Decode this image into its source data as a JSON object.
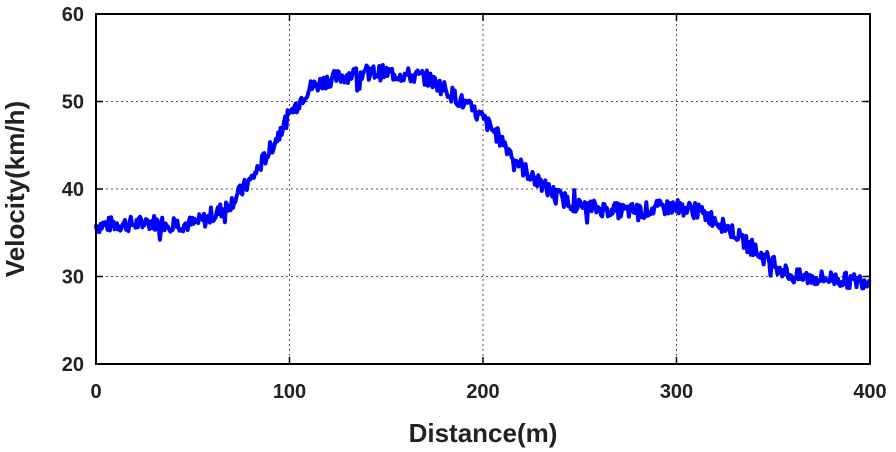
{
  "chart_data": {
    "type": "line",
    "title": "",
    "xlabel": "Distance(m)",
    "ylabel": "Velocity(km/h)",
    "xlim": [
      0,
      400
    ],
    "ylim": [
      20,
      60
    ],
    "xticks": [
      0,
      100,
      200,
      300,
      400
    ],
    "yticks": [
      20,
      30,
      40,
      50,
      60
    ],
    "xtick_labels": [
      "0",
      "100",
      "200",
      "300",
      "400"
    ],
    "ytick_labels": [
      "20",
      "30",
      "40",
      "50",
      "60"
    ],
    "grid": true,
    "legend": "none",
    "series": [
      {
        "color": "#0000ff",
        "x": [
          0,
          10,
          20,
          30,
          40,
          50,
          60,
          70,
          80,
          90,
          100,
          110,
          120,
          130,
          140,
          150,
          160,
          170,
          180,
          190,
          200,
          210,
          220,
          230,
          240,
          250,
          260,
          270,
          280,
          290,
          300,
          310,
          320,
          330,
          340,
          350,
          360,
          370,
          380,
          390,
          400
        ],
        "y": [
          35.8,
          36.0,
          36.0,
          36.2,
          36.0,
          36.0,
          36.8,
          38.5,
          41.0,
          44.5,
          48.5,
          51.5,
          52.5,
          53.0,
          53.3,
          53.3,
          53.0,
          52.8,
          51.5,
          49.8,
          48.0,
          45.5,
          42.5,
          40.5,
          39.0,
          38.0,
          37.8,
          37.5,
          37.5,
          37.8,
          38.0,
          37.5,
          36.5,
          35.0,
          33.0,
          31.5,
          30.0,
          29.8,
          29.8,
          29.5,
          29.5
        ]
      }
    ]
  }
}
